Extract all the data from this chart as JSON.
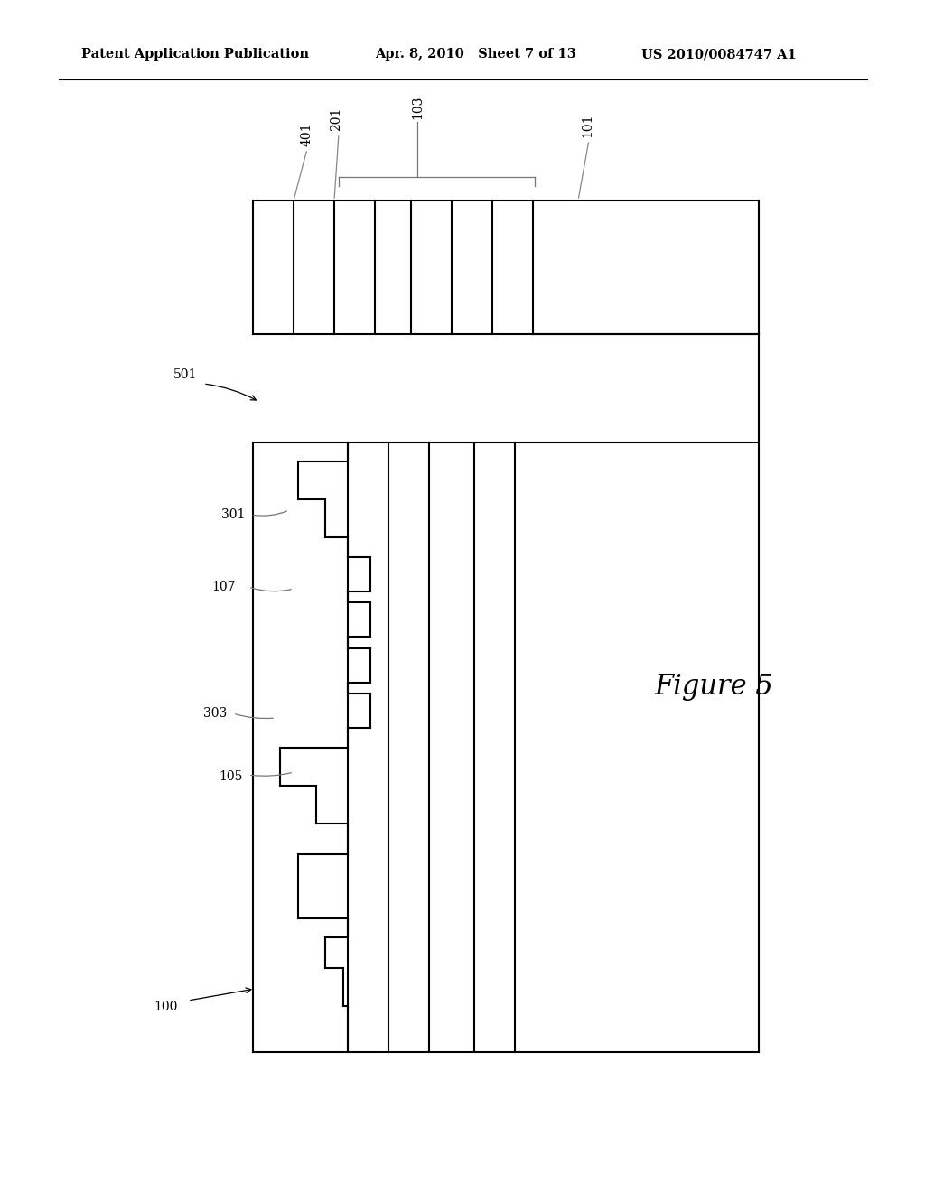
{
  "bg_color": "#ffffff",
  "line_color": "#000000",
  "header_left": "Patent Application Publication",
  "header_mid": "Apr. 8, 2010   Sheet 7 of 13",
  "header_right": "US 2010/0084747 A1",
  "figure_label": "Figure 5",
  "lw": 1.5,
  "lw_thin": 0.9
}
